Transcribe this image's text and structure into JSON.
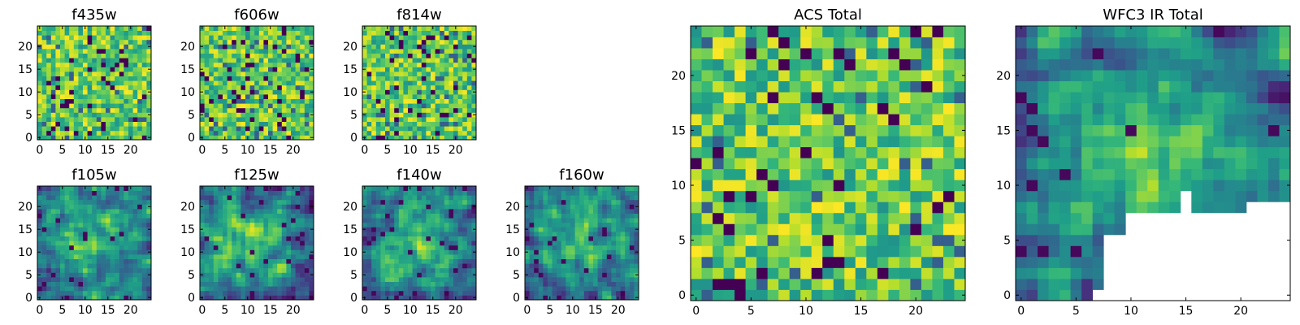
{
  "figure": {
    "panels": [
      {
        "title": "f435w",
        "seed": 11,
        "mode": "noise"
      },
      {
        "title": "f606w",
        "seed": 23,
        "mode": "noise"
      },
      {
        "title": "f814w",
        "seed": 37,
        "mode": "noise"
      },
      {
        "title": "f105w",
        "seed": 41,
        "mode": "smooth"
      },
      {
        "title": "f125w",
        "seed": 53,
        "mode": "smooth"
      },
      {
        "title": "f140w",
        "seed": 67,
        "mode": "smooth"
      },
      {
        "title": "f160w",
        "seed": 79,
        "mode": "smooth"
      },
      {
        "title": "ACS Total",
        "seed": 97,
        "mode": "noise"
      },
      {
        "title": "WFC3 IR Total",
        "seed": 113,
        "mode": "ir_masked"
      }
    ]
  },
  "chart_data": [
    {
      "type": "heatmap",
      "title": "f435w",
      "xlim": [
        -0.5,
        24.5
      ],
      "ylim": [
        -0.5,
        24.5
      ],
      "xticks": [
        0,
        5,
        10,
        15,
        20
      ],
      "yticks": [
        0,
        5,
        10,
        15,
        20
      ],
      "colormap": "viridis",
      "grid_size": [
        25,
        25
      ]
    },
    {
      "type": "heatmap",
      "title": "f606w",
      "xlim": [
        -0.5,
        24.5
      ],
      "ylim": [
        -0.5,
        24.5
      ],
      "xticks": [
        0,
        5,
        10,
        15,
        20
      ],
      "yticks": [
        0,
        5,
        10,
        15,
        20
      ],
      "colormap": "viridis",
      "grid_size": [
        25,
        25
      ]
    },
    {
      "type": "heatmap",
      "title": "f814w",
      "xlim": [
        -0.5,
        24.5
      ],
      "ylim": [
        -0.5,
        24.5
      ],
      "xticks": [
        0,
        5,
        10,
        15,
        20
      ],
      "yticks": [
        0,
        5,
        10,
        15,
        20
      ],
      "colormap": "viridis",
      "grid_size": [
        25,
        25
      ]
    },
    {
      "type": "heatmap",
      "title": "f105w",
      "xlim": [
        -0.5,
        24.5
      ],
      "ylim": [
        -0.5,
        24.5
      ],
      "xticks": [
        0,
        5,
        10,
        15,
        20
      ],
      "yticks": [
        0,
        5,
        10,
        15,
        20
      ],
      "colormap": "viridis",
      "grid_size": [
        25,
        25
      ]
    },
    {
      "type": "heatmap",
      "title": "f125w",
      "xlim": [
        -0.5,
        24.5
      ],
      "ylim": [
        -0.5,
        24.5
      ],
      "xticks": [
        0,
        5,
        10,
        15,
        20
      ],
      "yticks": [
        0,
        5,
        10,
        15,
        20
      ],
      "colormap": "viridis",
      "grid_size": [
        25,
        25
      ]
    },
    {
      "type": "heatmap",
      "title": "f140w",
      "xlim": [
        -0.5,
        24.5
      ],
      "ylim": [
        -0.5,
        24.5
      ],
      "xticks": [
        0,
        5,
        10,
        15,
        20
      ],
      "yticks": [
        0,
        5,
        10,
        15,
        20
      ],
      "colormap": "viridis",
      "grid_size": [
        25,
        25
      ]
    },
    {
      "type": "heatmap",
      "title": "f160w",
      "xlim": [
        -0.5,
        24.5
      ],
      "ylim": [
        -0.5,
        24.5
      ],
      "xticks": [
        0,
        5,
        10,
        15,
        20
      ],
      "yticks": [
        0,
        5,
        10,
        15,
        20
      ],
      "colormap": "viridis",
      "grid_size": [
        25,
        25
      ]
    },
    {
      "type": "heatmap",
      "title": "ACS Total",
      "xlim": [
        -0.5,
        24.5
      ],
      "ylim": [
        -0.5,
        24.5
      ],
      "xticks": [
        0,
        5,
        10,
        15,
        20
      ],
      "yticks": [
        0,
        5,
        10,
        15,
        20
      ],
      "colormap": "viridis",
      "grid_size": [
        25,
        25
      ]
    },
    {
      "type": "heatmap",
      "title": "WFC3 IR Total",
      "xlim": [
        -0.5,
        24.5
      ],
      "ylim": [
        -0.5,
        24.5
      ],
      "xticks": [
        0,
        5,
        10,
        15,
        20
      ],
      "yticks": [
        0,
        5,
        10,
        15,
        20
      ],
      "colormap": "viridis",
      "grid_size": [
        25,
        25
      ],
      "masked_region": "lower-right (blank)"
    }
  ]
}
